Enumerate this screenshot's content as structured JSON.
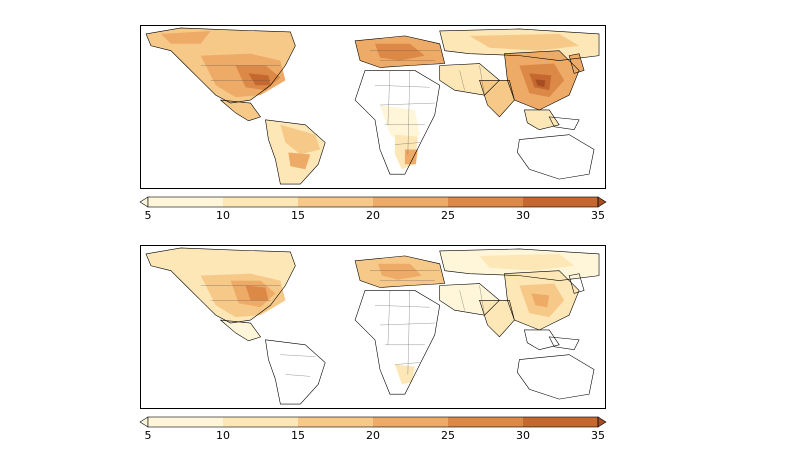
{
  "colorbar": {
    "ticks": [
      "5",
      "10",
      "15",
      "20",
      "25",
      "30",
      "35"
    ],
    "colors": [
      "#fff6d9",
      "#fde7b6",
      "#f7c988",
      "#eeab67",
      "#dc8846",
      "#c5682f",
      "#a64d23"
    ],
    "extend": "both"
  },
  "land_color": "#ffffff",
  "border_color": "#000000",
  "panels": [
    {
      "name": "top-map",
      "intensity": "high",
      "hotspots": [
        "North America",
        "Europe",
        "East Asia",
        "South America",
        "Southern Africa"
      ]
    },
    {
      "name": "bottom-map",
      "intensity": "lower",
      "hotspots": [
        "North America",
        "Europe",
        "East Asia"
      ]
    }
  ]
}
